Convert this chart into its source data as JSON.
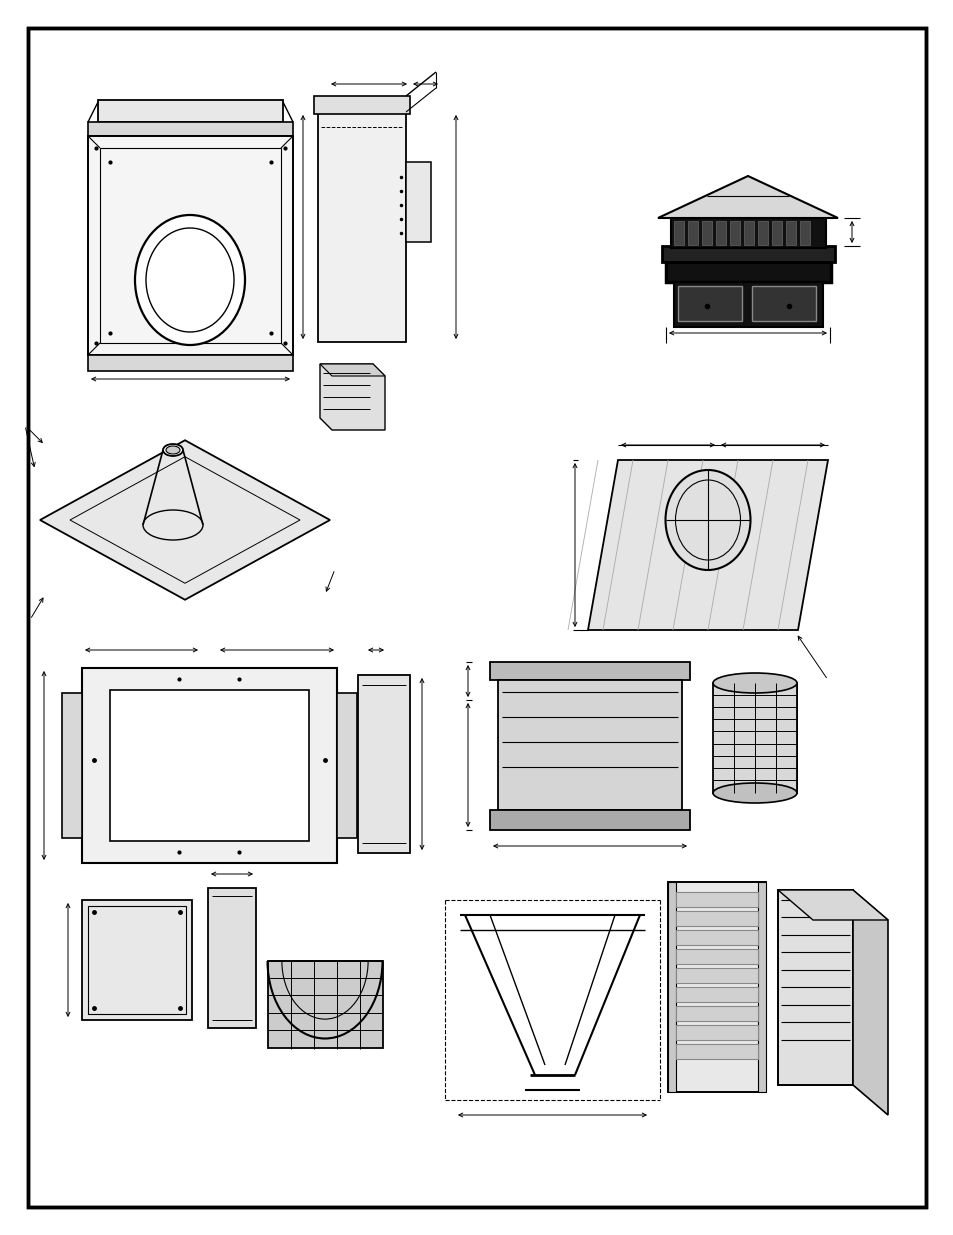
{
  "fig_width": 9.54,
  "fig_height": 12.35,
  "dpi": 100,
  "bg": "#ffffff",
  "lc": "#000000"
}
